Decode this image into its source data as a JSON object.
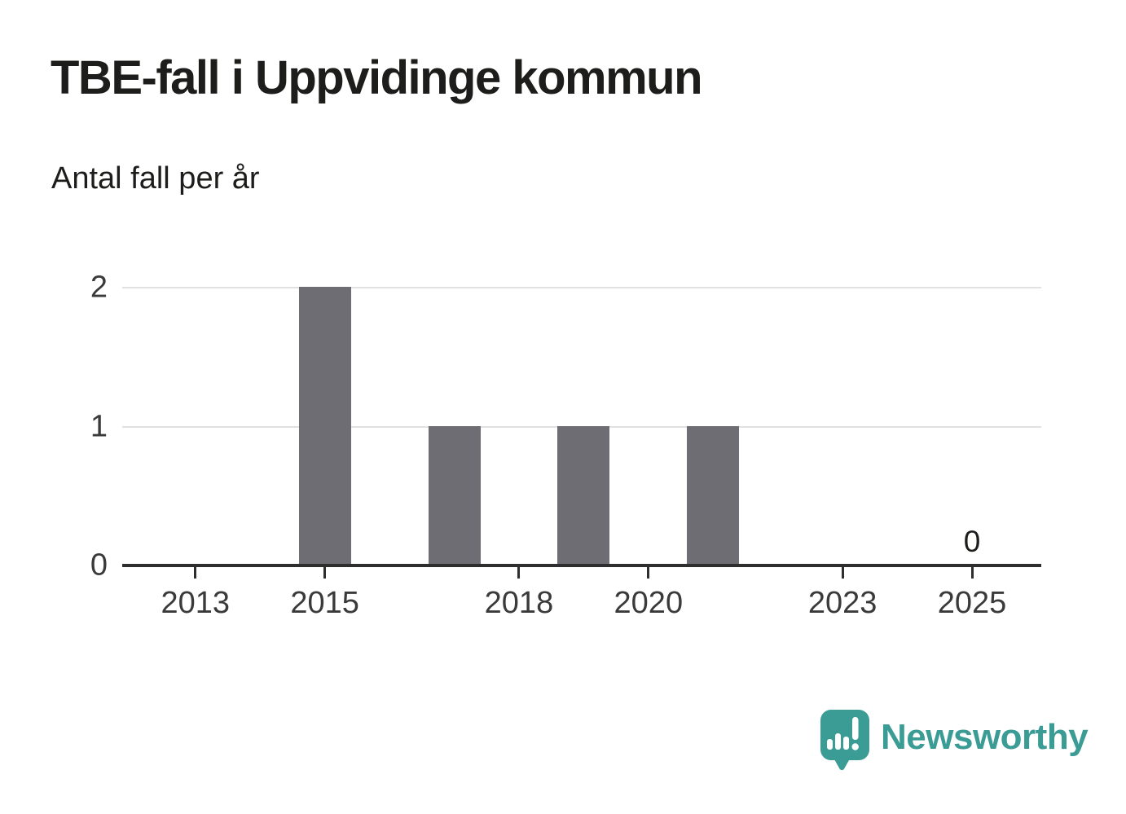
{
  "header": {
    "title": "TBE-fall i Uppvidinge kommun",
    "subtitle": "Antal fall per år"
  },
  "chart_data": {
    "type": "bar",
    "title": "TBE-fall i Uppvidinge kommun",
    "subtitle": "Antal fall per år",
    "xlabel": "",
    "ylabel": "Antal fall per år",
    "categories": [
      "2012",
      "2013",
      "2014",
      "2015",
      "2016",
      "2017",
      "2018",
      "2019",
      "2020",
      "2021",
      "2022",
      "2023",
      "2024",
      "2025"
    ],
    "values": [
      0,
      0,
      0,
      2,
      0,
      1,
      0,
      1,
      0,
      1,
      0,
      0,
      0,
      0
    ],
    "ylim": [
      0,
      2
    ],
    "yticks": [
      0,
      1,
      2
    ],
    "xtick_labels": [
      "2013",
      "2015",
      "2018",
      "2020",
      "2023",
      "2025"
    ],
    "grid": "horizontal-only",
    "legend": "none",
    "bar_color": "#6e6d73",
    "annotations": [
      {
        "category": "2025",
        "value": 0,
        "text": "0"
      }
    ]
  },
  "branding": {
    "logo_text": "Newsworthy",
    "logo_icon": "speech-bubble-bar-chart-exclamation",
    "logo_color": "#3a9c94"
  },
  "colors": {
    "background": "#ffffff",
    "title_text": "#1d1d1b",
    "bar": "#6e6d73",
    "gridline": "#e1e1e1",
    "axis": "#2e2e2e",
    "tick_label": "#3a3a3a",
    "accent_teal": "#3a9c94"
  }
}
